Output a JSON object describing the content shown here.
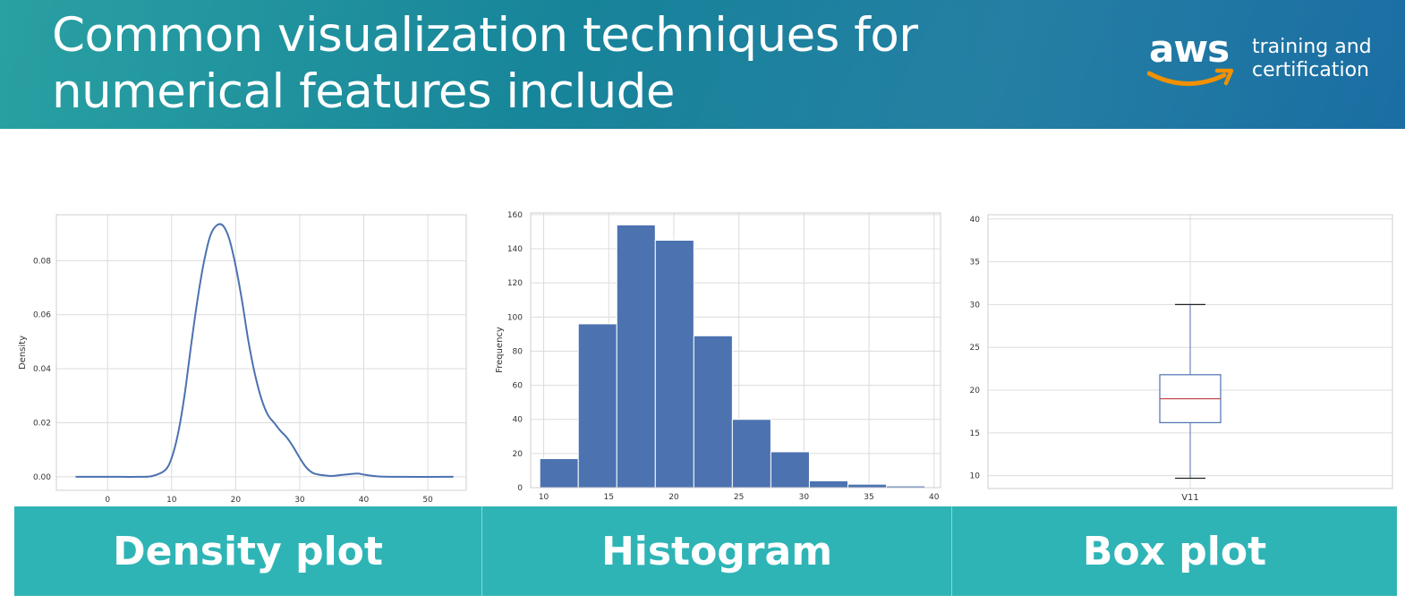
{
  "header": {
    "title": "Common visualization techniques for numerical features include",
    "logo": {
      "word": "aws",
      "sub_line1": "training and",
      "sub_line2": "certification"
    }
  },
  "colors": {
    "banner_start": "#1c9a9c",
    "banner_end": "#1a6ea3",
    "footer": "#2fb4b6",
    "series": "#4c72b0",
    "median": "#c44e52",
    "smile": "#f29100"
  },
  "footer": {
    "labels": [
      "Density plot",
      "Histogram",
      "Box plot"
    ]
  },
  "chart_data": [
    {
      "type": "line",
      "title": "",
      "xlabel": "",
      "ylabel": "Density",
      "xlim": [
        -8,
        56
      ],
      "ylim": [
        -0.005,
        0.097
      ],
      "xticks": [
        0,
        10,
        20,
        30,
        40,
        50
      ],
      "yticks": [
        0.0,
        0.02,
        0.04,
        0.06,
        0.08
      ],
      "ytick_labels": [
        "0.00",
        "0.02",
        "0.04",
        "0.06",
        "0.08"
      ],
      "grid": true,
      "x": [
        -5,
        0,
        5,
        7,
        9,
        10,
        11,
        12,
        13,
        14,
        15,
        16,
        17,
        18,
        19,
        20,
        21,
        22,
        23,
        24,
        25,
        26,
        27,
        28,
        29,
        30,
        31,
        32,
        33,
        34,
        35,
        37,
        39,
        40,
        42,
        45,
        54
      ],
      "y": [
        0.0,
        0.0,
        0.0,
        0.0003,
        0.0025,
        0.007,
        0.016,
        0.03,
        0.048,
        0.065,
        0.079,
        0.089,
        0.093,
        0.093,
        0.088,
        0.078,
        0.065,
        0.05,
        0.038,
        0.029,
        0.023,
        0.02,
        0.017,
        0.0145,
        0.011,
        0.007,
        0.0035,
        0.0015,
        0.0008,
        0.0005,
        0.0003,
        0.0008,
        0.0012,
        0.0008,
        0.0002,
        0.0,
        0.0
      ]
    },
    {
      "type": "bar",
      "title": "",
      "xlabel": "",
      "ylabel": "Frequency",
      "xlim": [
        9,
        40.5
      ],
      "ylim": [
        0,
        161
      ],
      "xticks": [
        10,
        15,
        20,
        25,
        30,
        35,
        40
      ],
      "yticks": [
        0,
        20,
        40,
        60,
        80,
        100,
        120,
        140,
        160
      ],
      "grid": true,
      "bin_edges": [
        9.7,
        12.66,
        15.62,
        18.58,
        21.54,
        24.5,
        27.46,
        30.42,
        33.38,
        36.34,
        39.3
      ],
      "values": [
        17,
        96,
        154,
        145,
        89,
        40,
        21,
        4,
        2,
        1
      ]
    },
    {
      "type": "box",
      "title": "",
      "categories": [
        "V11"
      ],
      "xlabel": "",
      "ylabel": "",
      "ylim": [
        8.5,
        40.5
      ],
      "yticks": [
        10,
        15,
        20,
        25,
        30,
        35,
        40
      ],
      "grid": true,
      "whisker_low": 9.7,
      "q1": 16.2,
      "median": 19.0,
      "q3": 21.8,
      "whisker_high": 30.0
    }
  ]
}
